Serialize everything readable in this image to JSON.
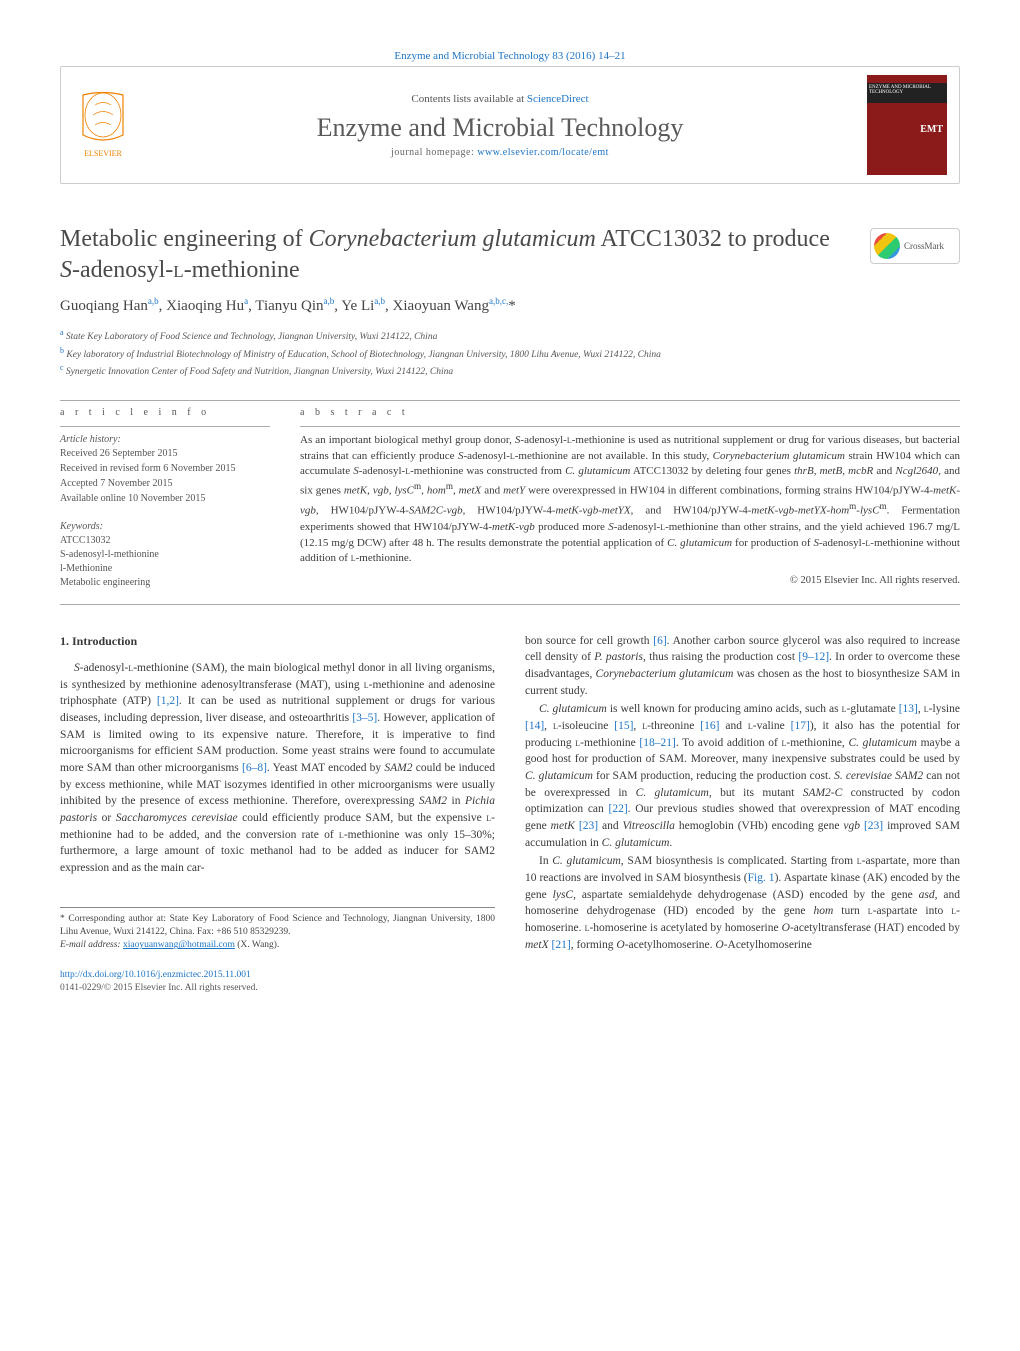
{
  "header": {
    "topLink": "Enzyme and Microbial Technology 83 (2016) 14–21",
    "contentsPrefix": "Contents lists available at ",
    "contentsLink": "ScienceDirect",
    "journalTitle": "Enzyme and Microbial Technology",
    "homepagePrefix": "journal homepage: ",
    "homepageLink": "www.elsevier.com/locate/emt",
    "coverBrand": "ENZYME AND MICROBIAL TECHNOLOGY",
    "coverAbbrev": "EMT",
    "crossmark": "CrossMark"
  },
  "article": {
    "titleHtml": "Metabolic engineering of <em>Corynebacterium glutamicum</em> ATCC13032 to produce <em>S</em>-adenosyl-<span style='font-variant:small-caps'>l</span>-methionine",
    "authorsHtml": "Guoqiang Han<sup>a,b</sup>, Xiaoqing Hu<sup>a</sup>, Tianyu Qin<sup>a,b</sup>, Ye Li<sup>a,b</sup>, Xiaoyuan Wang<sup>a,b,c,</sup>*"
  },
  "affiliations": [
    {
      "sup": "a",
      "text": "State Key Laboratory of Food Science and Technology, Jiangnan University, Wuxi 214122, China"
    },
    {
      "sup": "b",
      "text": "Key laboratory of Industrial Biotechnology of Ministry of Education, School of Biotechnology, Jiangnan University, 1800 Lihu Avenue, Wuxi 214122, China"
    },
    {
      "sup": "c",
      "text": "Synergetic Innovation Center of Food Safety and Nutrition, Jiangnan University, Wuxi 214122, China"
    }
  ],
  "labels": {
    "articleInfo": "a r t i c l e   i n f o",
    "abstract": "a b s t r a c t",
    "articleHistory": "Article history:",
    "keywords": "Keywords:"
  },
  "history": [
    "Received 26 September 2015",
    "Received in revised form 6 November 2015",
    "Accepted 7 November 2015",
    "Available online 10 November 2015"
  ],
  "keywords": [
    "ATCC13032",
    "S-adenosyl-l-methionine",
    "l-Methionine",
    "Metabolic engineering"
  ],
  "abstractHtml": "As an important biological methyl group donor, <em>S</em>-adenosyl-<span style='font-variant:small-caps'>l</span>-methionine is used as nutritional supplement or drug for various diseases, but bacterial strains that can efficiently produce <em>S</em>-adenosyl-<span style='font-variant:small-caps'>l</span>-methionine are not available. In this study, <em>Corynebacterium glutamicum</em> strain HW104 which can accumulate <em>S</em>-adenosyl-<span style='font-variant:small-caps'>l</span>-methionine was constructed from <em>C. glutamicum</em> ATCC13032 by deleting four genes <em>thrB</em>, <em>metB</em>, <em>mcbR</em> and <em>Ncgl2640</em>, and six genes <em>metK</em>, <em>vgb</em>, <em>lysC</em><sup>m</sup>, <em>hom</em><sup>m</sup>, <em>metX</em> and <em>metY</em> were overexpressed in HW104 in different combinations, forming strains HW104/pJYW-4-<em>metK-vgb</em>, HW104/pJYW-4-<em>SAM2C-vgb</em>, HW104/pJYW-4-<em>metK-vgb-metYX</em>, and HW104/pJYW-4-<em>metK-vgb-metYX-hom</em><sup>m</sup>-<em>lysC</em><sup>m</sup>. Fermentation experiments showed that HW104/pJYW-4-<em>metK-vgb</em> produced more <em>S</em>-adenosyl-<span style='font-variant:small-caps'>l</span>-methionine than other strains, and the yield achieved 196.7 mg/L (12.15 mg/g DCW) after 48 h. The results demonstrate the potential application of <em>C. glutamicum</em> for production of <em>S</em>-adenosyl-<span style='font-variant:small-caps'>l</span>-methionine without addition of <span style='font-variant:small-caps'>l</span>-methionine.",
  "copyright": "© 2015 Elsevier Inc. All rights reserved.",
  "introHeading": "1. Introduction",
  "body": {
    "leftHtml": "<em>S</em>-adenosyl-<span style='font-variant:small-caps'>l</span>-methionine (SAM), the main biological methyl donor in all living organisms, is synthesized by methionine adenosyltransferase (MAT), using <span style='font-variant:small-caps'>l</span>-methionine and adenosine triphosphate (ATP) <span class='ref-link'>[1,2]</span>. It can be used as nutritional supplement or drugs for various diseases, including depression, liver disease, and osteoarthritis <span class='ref-link'>[3–5]</span>. However, application of SAM is limited owing to its expensive nature. Therefore, it is imperative to find microorganisms for efficient SAM production. Some yeast strains were found to accumulate more SAM than other microorganisms <span class='ref-link'>[6–8]</span>. Yeast MAT encoded by <em>SAM2</em> could be induced by excess methionine, while MAT isozymes identified in other microorganisms were usually inhibited by the presence of excess methionine. Therefore, overexpressing <em>SAM2</em> in <em>Pichia pastoris</em> or <em>Saccharomyces cerevisiae</em> could efficiently produce SAM, but the expensive <span style='font-variant:small-caps'>l</span>-methionine had to be added, and the conversion rate of <span style='font-variant:small-caps'>l</span>-methionine was only 15–30%; furthermore, a large amount of toxic methanol had to be added as inducer for SAM2 expression and as the main car-",
    "right1Html": "bon source for cell growth <span class='ref-link'>[6]</span>. Another carbon source glycerol was also required to increase cell density of <em>P. pastoris</em>, thus raising the production cost <span class='ref-link'>[9–12]</span>. In order to overcome these disadvantages, <em>Corynebacterium glutamicum</em> was chosen as the host to biosynthesize SAM in current study.",
    "right2Html": "<em>C. glutamicum</em> is well known for producing amino acids, such as <span style='font-variant:small-caps'>l</span>-glutamate <span class='ref-link'>[13]</span>, <span style='font-variant:small-caps'>l</span>-lysine <span class='ref-link'>[14]</span>, <span style='font-variant:small-caps'>l</span>-isoleucine <span class='ref-link'>[15]</span>, <span style='font-variant:small-caps'>l</span>-threonine <span class='ref-link'>[16]</span> and <span style='font-variant:small-caps'>l</span>-valine <span class='ref-link'>[17]</span>), it also has the potential for producing <span style='font-variant:small-caps'>l</span>-methionine <span class='ref-link'>[18–21]</span>. To avoid addition of <span style='font-variant:small-caps'>l</span>-methionine, <em>C. glutamicum</em> maybe a good host for production of SAM. Moreover, many inexpensive substrates could be used by <em>C. glutamicum</em> for SAM production, reducing the production cost. <em>S. cerevisiae SAM2</em> can not be overexpressed in <em>C. glutamicum</em>, but its mutant <em>SAM2-C</em> constructed by codon optimization can <span class='ref-link'>[22]</span>. Our previous studies showed that overexpression of MAT encoding gene <em>metK</em> <span class='ref-link'>[23]</span> and <em>Vitreoscilla</em> hemoglobin (VHb) encoding gene <em>vgb</em> <span class='ref-link'>[23]</span> improved SAM accumulation in <em>C. glutamicum</em>.",
    "right3Html": "In <em>C. glutamicum</em>, SAM biosynthesis is complicated. Starting from <span style='font-variant:small-caps'>l</span>-aspartate, more than 10 reactions are involved in SAM biosynthesis (<span class='ref-link'>Fig. 1</span>). Aspartate kinase (AK) encoded by the gene <em>lysC</em>, aspartate semialdehyde dehydrogenase (ASD) encoded by the gene <em>asd</em>, and homoserine dehydrogenase (HD) encoded by the gene <em>hom</em> turn <span style='font-variant:small-caps'>l</span>-aspartate into <span style='font-variant:small-caps'>l</span>-homoserine. <span style='font-variant:small-caps'>l</span>-homoserine is acetylated by homoserine <em>O</em>-acetyltransferase (HAT) encoded by <em>metX</em> <span class='ref-link'>[21]</span>, forming <em>O</em>-acetylhomoserine. <em>O</em>-Acetylhomoserine"
  },
  "footnote": {
    "corresponding": "* Corresponding author at: State Key Laboratory of Food Science and Technology, Jiangnan University, 1800 Lihu Avenue, Wuxi 214122, China. Fax: +86 510 85329239.",
    "emailLabel": "E-mail address: ",
    "email": "xiaoyuanwang@hotmail.com",
    "emailSuffix": " (X. Wang)."
  },
  "doi": {
    "url": "http://dx.doi.org/10.1016/j.enzmictec.2015.11.001",
    "issn": "0141-0229/© 2015 Elsevier Inc. All rights reserved."
  },
  "colors": {
    "link": "#1d74c4",
    "text": "#3a3a3a",
    "coverBg": "#8b1a1a",
    "elsevierOrange": "#ef8200"
  }
}
